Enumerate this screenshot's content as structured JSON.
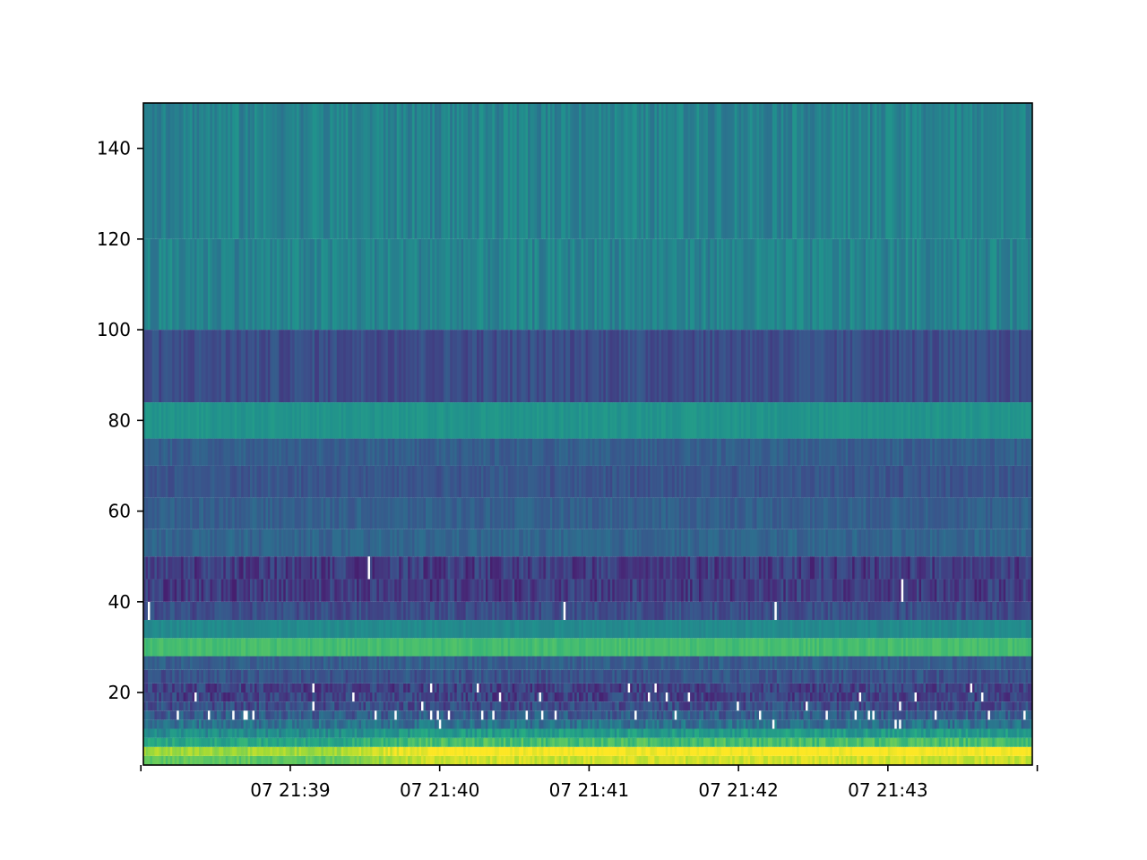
{
  "chart_data": {
    "type": "heatmap",
    "title": "",
    "xlabel": "",
    "ylabel": "",
    "x_axis": {
      "kind": "time",
      "range": [
        "07 21:38:01",
        "07 21:43:58"
      ],
      "ticks": [
        {
          "value": "07 21:38:00",
          "label": ""
        },
        {
          "value": "07 21:39:00",
          "label": "07 21:39"
        },
        {
          "value": "07 21:40:00",
          "label": "07 21:40"
        },
        {
          "value": "07 21:41:00",
          "label": "07 21:41"
        },
        {
          "value": "07 21:42:00",
          "label": "07 21:42"
        },
        {
          "value": "07 21:43:00",
          "label": "07 21:43"
        },
        {
          "value": "07 21:44:00",
          "label": ""
        }
      ]
    },
    "y_axis": {
      "range": [
        4,
        150
      ],
      "ticks": [
        {
          "value": 20,
          "label": "20"
        },
        {
          "value": 40,
          "label": "40"
        },
        {
          "value": 60,
          "label": "60"
        },
        {
          "value": 80,
          "label": "80"
        },
        {
          "value": 100,
          "label": "100"
        },
        {
          "value": 120,
          "label": "120"
        },
        {
          "value": 140,
          "label": "140"
        }
      ]
    },
    "colormap": "viridis",
    "grid": false,
    "legend": "none",
    "time_columns": 400,
    "bands": [
      {
        "y0": 4,
        "y1": 6,
        "level": 0.75,
        "noise": 0.05,
        "mask_rate": 0.0
      },
      {
        "y0": 6,
        "y1": 8,
        "level": 0.86,
        "noise": 0.05,
        "mask_rate": 0.0
      },
      {
        "y0": 8,
        "y1": 10,
        "level": 0.6,
        "noise": 0.07,
        "mask_rate": 0.0
      },
      {
        "y0": 10,
        "y1": 12,
        "level": 0.48,
        "noise": 0.08,
        "mask_rate": 0.0
      },
      {
        "y0": 12,
        "y1": 14,
        "level": 0.38,
        "noise": 0.1,
        "mask_rate": 0.01
      },
      {
        "y0": 14,
        "y1": 16,
        "level": 0.3,
        "noise": 0.1,
        "mask_rate": 0.06
      },
      {
        "y0": 16,
        "y1": 18,
        "level": 0.24,
        "noise": 0.1,
        "mask_rate": 0.02
      },
      {
        "y0": 18,
        "y1": 20,
        "level": 0.2,
        "noise": 0.1,
        "mask_rate": 0.02
      },
      {
        "y0": 20,
        "y1": 22,
        "level": 0.2,
        "noise": 0.1,
        "mask_rate": 0.02
      },
      {
        "y0": 22,
        "y1": 25,
        "level": 0.26,
        "noise": 0.07,
        "mask_rate": 0.0
      },
      {
        "y0": 25,
        "y1": 28,
        "level": 0.3,
        "noise": 0.06,
        "mask_rate": 0.0
      },
      {
        "y0": 28,
        "y1": 32,
        "level": 0.7,
        "noise": 0.03,
        "mask_rate": 0.0
      },
      {
        "y0": 32,
        "y1": 36,
        "level": 0.48,
        "noise": 0.03,
        "mask_rate": 0.0
      },
      {
        "y0": 36,
        "y1": 40,
        "level": 0.24,
        "noise": 0.07,
        "mask_rate": 0.003
      },
      {
        "y0": 40,
        "y1": 45,
        "level": 0.18,
        "noise": 0.09,
        "mask_rate": 0.003
      },
      {
        "y0": 45,
        "y1": 50,
        "level": 0.18,
        "noise": 0.09,
        "mask_rate": 0.003
      },
      {
        "y0": 50,
        "y1": 56,
        "level": 0.33,
        "noise": 0.05,
        "mask_rate": 0.0
      },
      {
        "y0": 56,
        "y1": 63,
        "level": 0.31,
        "noise": 0.05,
        "mask_rate": 0.0
      },
      {
        "y0": 63,
        "y1": 70,
        "level": 0.27,
        "noise": 0.05,
        "mask_rate": 0.0
      },
      {
        "y0": 70,
        "y1": 76,
        "level": 0.3,
        "noise": 0.05,
        "mask_rate": 0.0
      },
      {
        "y0": 76,
        "y1": 84,
        "level": 0.52,
        "noise": 0.03,
        "mask_rate": 0.0
      },
      {
        "y0": 84,
        "y1": 100,
        "level": 0.24,
        "noise": 0.06,
        "mask_rate": 0.0
      },
      {
        "y0": 100,
        "y1": 120,
        "level": 0.45,
        "noise": 0.07,
        "mask_rate": 0.0
      },
      {
        "y0": 120,
        "y1": 150,
        "level": 0.45,
        "noise": 0.07,
        "mask_rate": 0.0
      }
    ],
    "low_band_rise": {
      "start": "07 21:39:15",
      "end": "07 21:43:58",
      "max_y": 12,
      "boost": 0.18
    }
  }
}
